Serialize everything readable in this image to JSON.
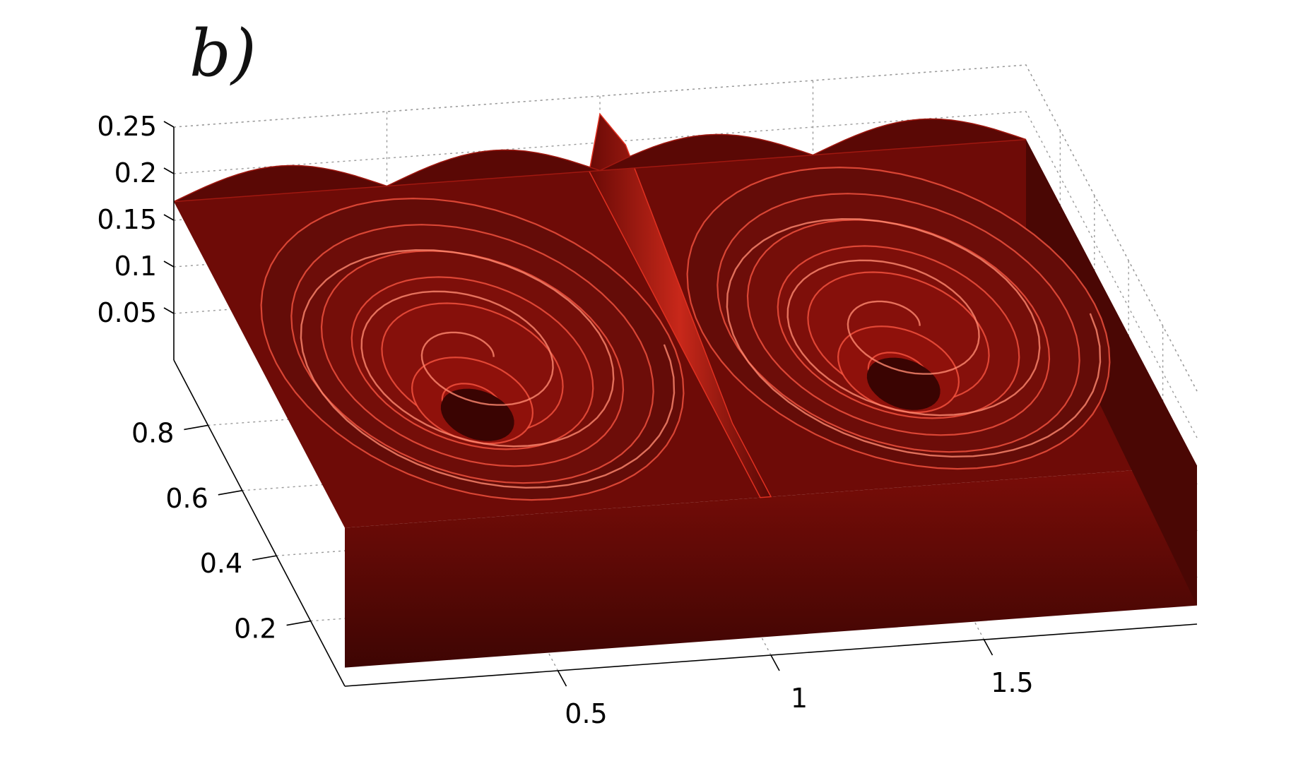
{
  "chart_data": {
    "type": "surface3d",
    "panel_label": "b)",
    "title": "",
    "xlabel": "",
    "ylabel": "",
    "zlabel": "",
    "x_ticks": [
      "0.5",
      "1",
      "1.5"
    ],
    "y_ticks": [
      "0.2",
      "0.4",
      "0.6",
      "0.8"
    ],
    "z_ticks": [
      "0.05",
      "0.1",
      "0.15",
      "0.2",
      "0.25"
    ],
    "x_tick_values": [
      0.5,
      1.0,
      1.5
    ],
    "y_tick_values": [
      0.2,
      0.4,
      0.6,
      0.8
    ],
    "z_tick_values": [
      0.05,
      0.1,
      0.15,
      0.2,
      0.25
    ],
    "xlim": [
      0,
      2
    ],
    "ylim": [
      0,
      1
    ],
    "zlim": [
      0.0,
      0.25
    ],
    "grid": true,
    "surface_color": "#b01a10",
    "surface_shadow_color": "#4a0704",
    "surface_highlight_color": "#ff6a55",
    "features": [
      {
        "type": "spiral-vortex",
        "center_x": 0.5,
        "center_y": 0.5,
        "rings": 7
      },
      {
        "type": "spiral-vortex",
        "center_x": 1.5,
        "center_y": 0.5,
        "rings": 7
      },
      {
        "type": "ridge",
        "x": 1.0,
        "peak_z": 0.25
      }
    ]
  }
}
